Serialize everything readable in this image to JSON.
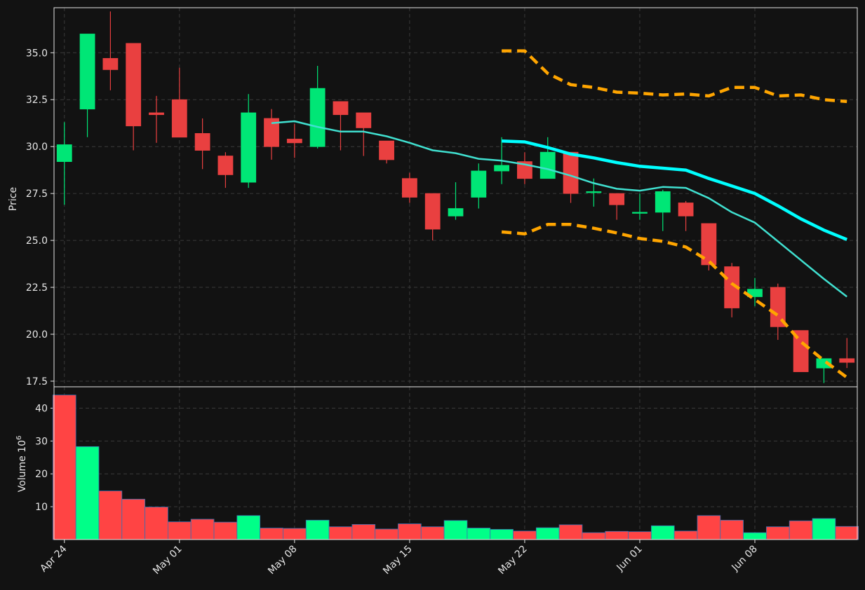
{
  "chart_data": {
    "type": "candlestick",
    "price_axis": {
      "label": "Price",
      "ticks": [
        "17.5",
        "20.0",
        "22.5",
        "25.0",
        "27.5",
        "30.0",
        "32.5",
        "35.0"
      ],
      "tick_values": [
        17.5,
        20.0,
        22.5,
        25.0,
        27.5,
        30.0,
        32.5,
        35.0
      ],
      "ylim": [
        17.2,
        37.4
      ]
    },
    "volume_axis": {
      "label": "Volume  10",
      "label_exponent": "6",
      "ticks": [
        "10",
        "20",
        "30",
        "40"
      ],
      "tick_values": [
        10,
        20,
        30,
        40
      ],
      "ylim": [
        0,
        46.5
      ]
    },
    "x_ticks": [
      {
        "label": "Apr 24",
        "index": 0
      },
      {
        "label": "May 01",
        "index": 5
      },
      {
        "label": "May 08",
        "index": 10
      },
      {
        "label": "May 15",
        "index": 15
      },
      {
        "label": "May 22",
        "index": 20
      },
      {
        "label": "Jun 01",
        "index": 25
      },
      {
        "label": "Jun 08",
        "index": 30
      }
    ],
    "xlim": [
      -0.45,
      34.45
    ],
    "grid": true,
    "colors": {
      "up": "#00e676",
      "down": "#e94040",
      "volume_up": "#00ff88",
      "volume_down": "#ff4444",
      "ma_short": "#40e0d0",
      "ma_long": "#00ffff",
      "bands": "#ffa500",
      "background": "#121212",
      "grid": "#3a3a3a",
      "text": "#e6e6e6"
    },
    "candles": [
      {
        "o": 29.2,
        "h": 31.3,
        "l": 26.9,
        "c": 30.1
      },
      {
        "o": 32.0,
        "h": 36.0,
        "l": 30.5,
        "c": 36.0
      },
      {
        "o": 34.7,
        "h": 37.2,
        "l": 33.0,
        "c": 34.1
      },
      {
        "o": 35.5,
        "h": 35.5,
        "l": 29.8,
        "c": 31.1
      },
      {
        "o": 31.8,
        "h": 32.7,
        "l": 30.2,
        "c": 31.7
      },
      {
        "o": 32.5,
        "h": 34.2,
        "l": 30.5,
        "c": 30.5
      },
      {
        "o": 30.7,
        "h": 31.5,
        "l": 28.8,
        "c": 29.8
      },
      {
        "o": 29.5,
        "h": 29.7,
        "l": 27.8,
        "c": 28.5
      },
      {
        "o": 28.1,
        "h": 32.8,
        "l": 27.8,
        "c": 31.8
      },
      {
        "o": 31.5,
        "h": 32.0,
        "l": 29.3,
        "c": 30.0
      },
      {
        "o": 30.4,
        "h": 31.2,
        "l": 29.4,
        "c": 30.2
      },
      {
        "o": 30.0,
        "h": 34.3,
        "l": 29.9,
        "c": 33.1
      },
      {
        "o": 32.4,
        "h": 32.4,
        "l": 29.8,
        "c": 31.7
      },
      {
        "o": 31.8,
        "h": 31.8,
        "l": 29.5,
        "c": 31.0
      },
      {
        "o": 30.3,
        "h": 30.3,
        "l": 29.1,
        "c": 29.3
      },
      {
        "o": 28.3,
        "h": 28.6,
        "l": 27.0,
        "c": 27.3
      },
      {
        "o": 27.5,
        "h": 27.5,
        "l": 25.0,
        "c": 25.6
      },
      {
        "o": 26.3,
        "h": 28.1,
        "l": 26.1,
        "c": 26.7
      },
      {
        "o": 27.3,
        "h": 29.1,
        "l": 26.7,
        "c": 28.7
      },
      {
        "o": 28.7,
        "h": 30.5,
        "l": 28.0,
        "c": 29.0
      },
      {
        "o": 29.2,
        "h": 29.7,
        "l": 28.0,
        "c": 28.3
      },
      {
        "o": 28.3,
        "h": 30.5,
        "l": 28.3,
        "c": 29.7
      },
      {
        "o": 29.7,
        "h": 29.7,
        "l": 27.0,
        "c": 27.5
      },
      {
        "o": 27.6,
        "h": 28.3,
        "l": 26.8,
        "c": 27.6
      },
      {
        "o": 27.5,
        "h": 27.5,
        "l": 26.1,
        "c": 26.9
      },
      {
        "o": 26.5,
        "h": 27.5,
        "l": 26.1,
        "c": 26.5
      },
      {
        "o": 26.5,
        "h": 27.7,
        "l": 25.5,
        "c": 27.6
      },
      {
        "o": 27.0,
        "h": 27.1,
        "l": 25.5,
        "c": 26.3
      },
      {
        "o": 25.9,
        "h": 25.9,
        "l": 23.4,
        "c": 23.7
      },
      {
        "o": 23.6,
        "h": 23.8,
        "l": 20.9,
        "c": 21.4
      },
      {
        "o": 22.0,
        "h": 23.0,
        "l": 21.5,
        "c": 22.4
      },
      {
        "o": 22.5,
        "h": 22.7,
        "l": 19.7,
        "c": 20.4
      },
      {
        "o": 20.2,
        "h": 20.2,
        "l": 18.0,
        "c": 18.0
      },
      {
        "o": 18.2,
        "h": 18.7,
        "l": 17.4,
        "c": 18.7
      },
      {
        "o": 18.7,
        "h": 19.8,
        "l": 18.2,
        "c": 18.5
      }
    ],
    "volume": [
      44.0,
      28.3,
      14.8,
      12.3,
      9.9,
      5.4,
      6.2,
      5.3,
      7.3,
      3.5,
      3.4,
      5.9,
      3.9,
      4.6,
      3.2,
      4.8,
      3.9,
      5.8,
      3.5,
      3.1,
      2.6,
      3.6,
      4.5,
      2.1,
      2.5,
      2.4,
      4.2,
      2.6,
      7.3,
      5.9,
      2.1,
      3.9,
      5.7,
      6.4,
      4.0
    ],
    "volume_up": [
      false,
      true,
      false,
      false,
      false,
      false,
      false,
      false,
      true,
      false,
      false,
      true,
      false,
      false,
      false,
      false,
      false,
      true,
      true,
      true,
      false,
      true,
      false,
      false,
      false,
      false,
      true,
      false,
      false,
      false,
      true,
      false,
      false,
      true,
      false
    ],
    "ma_short": {
      "start": 9,
      "values": [
        31.25,
        31.35,
        31.05,
        30.8,
        30.8,
        30.55,
        30.2,
        29.8,
        29.65,
        29.35,
        29.25,
        29.05,
        28.8,
        28.45,
        28.05,
        27.75,
        27.65,
        27.85,
        27.8,
        27.25,
        26.5,
        25.95,
        24.95,
        23.95,
        22.95,
        22.0
      ]
    },
    "ma_long": {
      "start": 19,
      "values": [
        30.3,
        30.25,
        29.95,
        29.6,
        29.4,
        29.15,
        28.95,
        28.85,
        28.75,
        28.3,
        27.9,
        27.5,
        26.85,
        26.15,
        25.55,
        25.05
      ]
    },
    "band_upper": {
      "start": 19,
      "values": [
        35.1,
        35.1,
        33.9,
        33.3,
        33.15,
        32.9,
        32.85,
        32.75,
        32.8,
        32.7,
        33.15,
        33.15,
        32.7,
        32.75,
        32.5,
        32.4
      ]
    },
    "band_lower": {
      "start": 19,
      "values": [
        25.45,
        25.35,
        25.85,
        25.85,
        25.65,
        25.4,
        25.1,
        24.95,
        24.65,
        23.9,
        22.7,
        21.85,
        21.0,
        19.6,
        18.6,
        17.7
      ]
    }
  }
}
